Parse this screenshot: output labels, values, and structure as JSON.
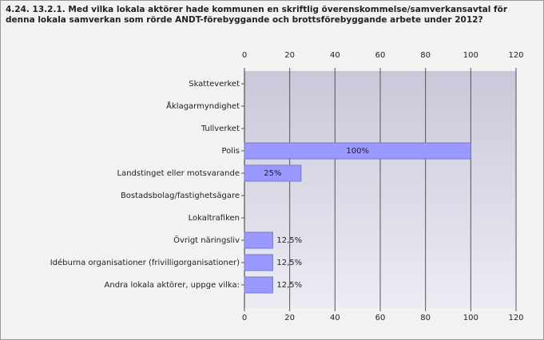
{
  "chart_data": {
    "type": "bar",
    "orientation": "horizontal",
    "title": "4.24. 13.2.1. Med vilka lokala aktörer hade kommunen en skriftlig överenskommelse/samverkansavtal för denna lokala samverkan som rörde ANDT-förebyggande och brottsförebyggande arbete under 2012?",
    "categories": [
      "Skatteverket",
      "Åklagarmyndighet",
      "Tullverket",
      "Polis",
      "Landstinget eller motsvarande",
      "Bostadsbolag/fastighetsägare",
      "Lokaltrafiken",
      "Övrigt näringsliv",
      "Idéburna organisationer (frivilligorganisationer)",
      "Andra lokala aktörer, uppge vilka:"
    ],
    "values": [
      0,
      0,
      0,
      100,
      25,
      0,
      0,
      12.5,
      12.5,
      12.5
    ],
    "value_labels": [
      null,
      null,
      null,
      "100%",
      "25%",
      null,
      null,
      "12,5%",
      "12,5%",
      "12,5%"
    ],
    "color": "#9999ff",
    "xlim": [
      0,
      120
    ],
    "xticks": [
      0,
      20,
      40,
      60,
      80,
      100,
      120
    ],
    "grid": true
  }
}
